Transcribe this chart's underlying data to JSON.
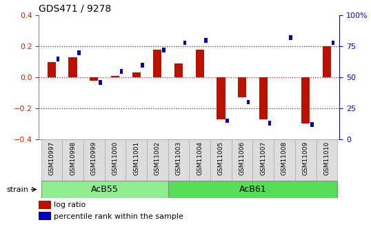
{
  "title": "GDS471 / 9278",
  "samples": [
    "GSM10997",
    "GSM10998",
    "GSM10999",
    "GSM11000",
    "GSM11001",
    "GSM11002",
    "GSM11003",
    "GSM11004",
    "GSM11005",
    "GSM11006",
    "GSM11007",
    "GSM11008",
    "GSM11009",
    "GSM11010"
  ],
  "log_ratio": [
    0.1,
    0.13,
    -0.02,
    0.01,
    0.03,
    0.18,
    0.09,
    0.18,
    -0.27,
    -0.13,
    -0.27,
    0.0,
    -0.3,
    0.2
  ],
  "percentile_rank": [
    65,
    70,
    46,
    55,
    60,
    72,
    78,
    80,
    15,
    30,
    13,
    82,
    12,
    78
  ],
  "groups": [
    {
      "label": "AcB55",
      "start": 0,
      "end": 6,
      "color": "#90EE90"
    },
    {
      "label": "AcB61",
      "start": 6,
      "end": 14,
      "color": "#55DD55"
    }
  ],
  "bar_color_red": "#BB1100",
  "bar_color_blue": "#0000BB",
  "ylim": [
    -0.4,
    0.4
  ],
  "yticks_left": [
    -0.4,
    -0.2,
    0.0,
    0.2,
    0.4
  ],
  "yticks_right": [
    0,
    25,
    50,
    75,
    100
  ],
  "hlines_dotted": [
    0.2,
    -0.2
  ],
  "hline_red": 0.0,
  "legend_log_ratio": "log ratio",
  "legend_percentile": "percentile rank within the sample",
  "strain_label": "strain",
  "bar_width": 0.4,
  "blue_bar_width": 0.15,
  "blue_bar_height": 0.03
}
